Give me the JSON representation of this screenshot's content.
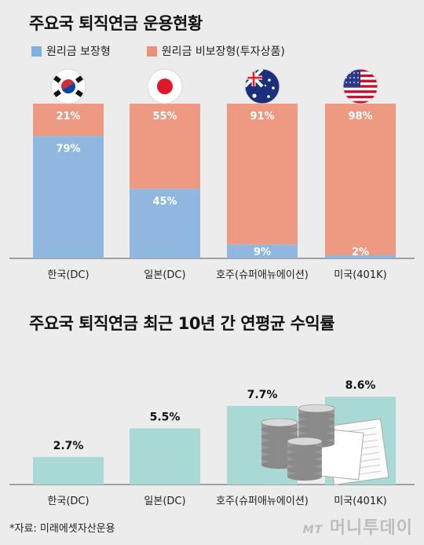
{
  "chart_data": [
    {
      "type": "bar",
      "stacked": true,
      "title": "주요국 퇴직연금 운용현황",
      "categories": [
        "한국(DC)",
        "일본(DC)",
        "호주(슈퍼애뉴에이션)",
        "미국(401K)"
      ],
      "series": [
        {
          "name": "원리금 보장형",
          "values": [
            79,
            45,
            9,
            2
          ],
          "labels": [
            "79%",
            "45%",
            "9%",
            "2%"
          ],
          "color": "#8fb7e0"
        },
        {
          "name": "원리금 비보장형(투자상품)",
          "values": [
            21,
            55,
            91,
            98
          ],
          "labels": [
            "21%",
            "55%",
            "91%",
            "98%"
          ],
          "color": "#ee9a83"
        }
      ],
      "flags": [
        "korea-flag-icon",
        "japan-flag-icon",
        "australia-flag-icon",
        "usa-flag-icon"
      ],
      "ylim": [
        0,
        100
      ]
    },
    {
      "type": "bar",
      "title": "주요국 퇴직연금 최근 10년 간 연평균 수익률",
      "categories": [
        "한국(DC)",
        "일본(DC)",
        "호주(슈퍼애뉴에이션)",
        "미국(401K)"
      ],
      "values": [
        2.7,
        5.5,
        7.7,
        8.6
      ],
      "labels": [
        "2.7%",
        "5.5%",
        "7.7%",
        "8.6%"
      ],
      "color": "#a9d9d4",
      "ylim": [
        0,
        9
      ]
    }
  ],
  "footer": {
    "source": "*자료: 미래에셋자산운용",
    "logo_prefix": "MT",
    "logo_text": "머니투데이"
  }
}
